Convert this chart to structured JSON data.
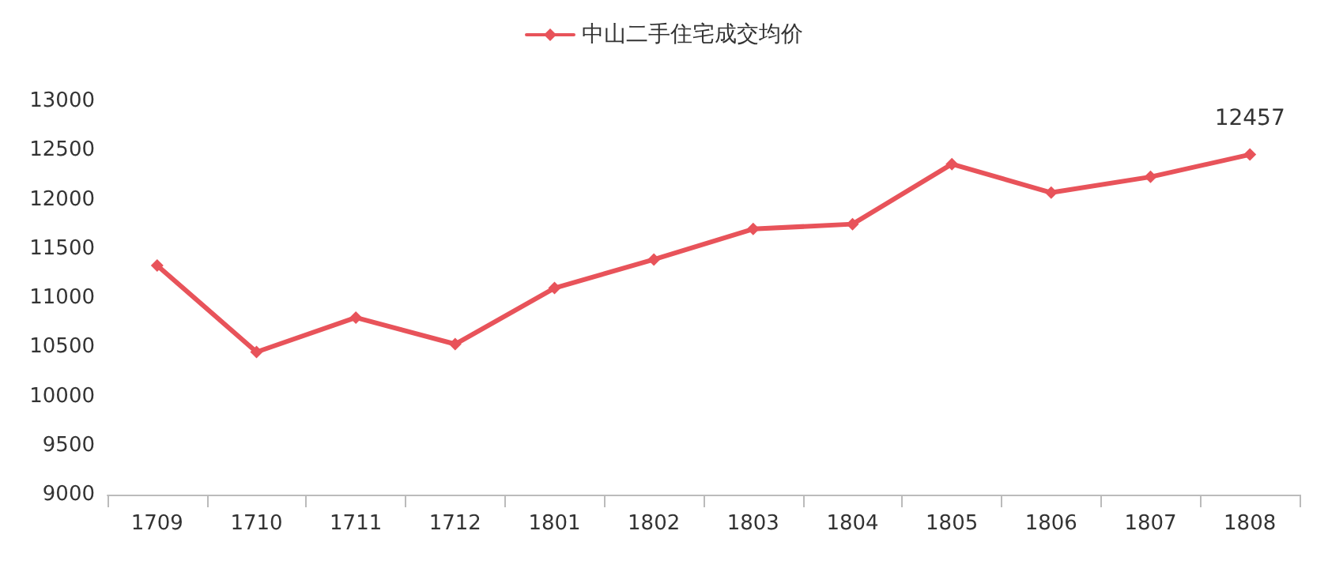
{
  "chart_data": {
    "type": "line",
    "categories": [
      "1709",
      "1710",
      "1711",
      "1712",
      "1801",
      "1802",
      "1803",
      "1804",
      "1805",
      "1806",
      "1807",
      "1808"
    ],
    "series": [
      {
        "name": "中山二手住宅成交均价",
        "color": "#e8535a",
        "values": [
          11330,
          10450,
          10800,
          10530,
          11100,
          11390,
          11700,
          11750,
          12360,
          12070,
          12230,
          12457
        ],
        "value_labels": [
          null,
          null,
          null,
          null,
          null,
          null,
          null,
          null,
          null,
          null,
          null,
          "12457"
        ]
      }
    ],
    "ylim": [
      9000,
      13000
    ],
    "yticks": [
      9000,
      9500,
      10000,
      10500,
      11000,
      11500,
      12000,
      12500,
      13000
    ],
    "grid": false,
    "legend": "top",
    "marker": "diamond",
    "line_style": "solid"
  }
}
